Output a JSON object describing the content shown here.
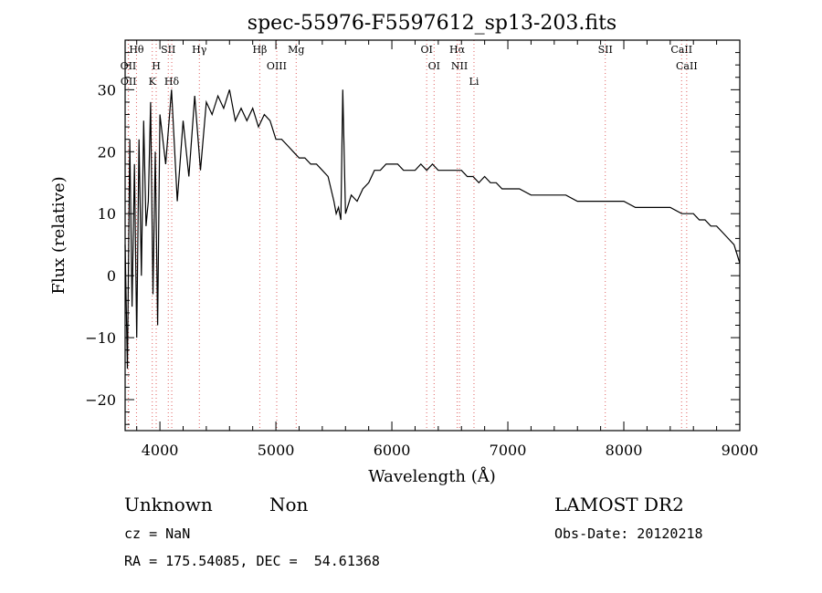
{
  "info": {
    "class_label": "Unknown",
    "subclass_label": "Non",
    "cz_text": "cz = NaN",
    "coords_text": "RA = 175.54085, DEC =  54.61368",
    "survey": "LAMOST DR2",
    "obs_date": "Obs-Date: 20120218"
  },
  "chart_data": {
    "type": "line",
    "title": "spec-55976-F5597612_sp13-203.fits",
    "xlabel": "Wavelength (Å)",
    "ylabel": "Flux (relative)",
    "xlim": [
      3700,
      9000
    ],
    "ylim": [
      -25,
      38
    ],
    "x_ticks": [
      4000,
      5000,
      6000,
      7000,
      8000,
      9000
    ],
    "y_ticks": [
      -20,
      -10,
      0,
      10,
      20,
      30
    ],
    "grid": false,
    "line_color": "#000000",
    "marker_color": "#e06060",
    "series": [
      {
        "x": [
          3700,
          3720,
          3740,
          3760,
          3780,
          3800,
          3820,
          3840,
          3860,
          3880,
          3900,
          3920,
          3940,
          3960,
          3980,
          4000,
          4050,
          4100,
          4150,
          4200,
          4250,
          4300,
          4350,
          4400,
          4450,
          4500,
          4550,
          4600,
          4650,
          4700,
          4750,
          4800,
          4850,
          4900,
          4950,
          5000,
          5050,
          5100,
          5150,
          5200,
          5250,
          5300,
          5350,
          5400,
          5450,
          5500,
          5520,
          5540,
          5560,
          5577,
          5600,
          5650,
          5700,
          5750,
          5800,
          5850,
          5900,
          5950,
          6000,
          6050,
          6100,
          6150,
          6200,
          6250,
          6300,
          6350,
          6400,
          6450,
          6500,
          6550,
          6600,
          6650,
          6700,
          6750,
          6800,
          6850,
          6900,
          6950,
          7000,
          7100,
          7200,
          7300,
          7400,
          7500,
          7600,
          7700,
          7800,
          7900,
          8000,
          8100,
          8200,
          8300,
          8400,
          8500,
          8600,
          8650,
          8700,
          8750,
          8800,
          8850,
          8900,
          8950,
          9000
        ],
        "y": [
          5,
          -15,
          22,
          -5,
          18,
          -10,
          22,
          0,
          25,
          8,
          12,
          28,
          -3,
          20,
          -8,
          26,
          18,
          30,
          12,
          25,
          16,
          29,
          17,
          28,
          26,
          29,
          27,
          30,
          25,
          27,
          25,
          27,
          24,
          26,
          25,
          22,
          22,
          21,
          20,
          19,
          19,
          18,
          18,
          17,
          16,
          12,
          10,
          11,
          9,
          30,
          10,
          13,
          12,
          14,
          15,
          17,
          17,
          18,
          18,
          18,
          17,
          17,
          17,
          18,
          17,
          18,
          17,
          17,
          17,
          17,
          17,
          16,
          16,
          15,
          16,
          15,
          15,
          14,
          14,
          14,
          13,
          13,
          13,
          13,
          12,
          12,
          12,
          12,
          12,
          11,
          11,
          11,
          11,
          10,
          10,
          9,
          9,
          8,
          8,
          7,
          6,
          5,
          2
        ]
      }
    ],
    "line_markers": [
      {
        "label": "Hθ",
        "x": 3798
      },
      {
        "label": "OII",
        "x": 3727
      },
      {
        "label": "OII",
        "x": 3729
      },
      {
        "label": "H",
        "x": 3968
      },
      {
        "label": "K",
        "x": 3934
      },
      {
        "label": "SII",
        "x": 4072
      },
      {
        "label": "Hδ",
        "x": 4102
      },
      {
        "label": "Hγ",
        "x": 4340
      },
      {
        "label": "Hβ",
        "x": 4861
      },
      {
        "label": "OIII",
        "x": 5007
      },
      {
        "label": "Mg",
        "x": 5175
      },
      {
        "label": "OI",
        "x": 6300
      },
      {
        "label": "OI",
        "x": 6364
      },
      {
        "label": "Hα",
        "x": 6563
      },
      {
        "label": "NII",
        "x": 6583
      },
      {
        "label": "Li",
        "x": 6708
      },
      {
        "label": "SII",
        "x": 7840
      },
      {
        "label": "CaII",
        "x": 8498
      },
      {
        "label": "CaII",
        "x": 8542
      }
    ]
  }
}
